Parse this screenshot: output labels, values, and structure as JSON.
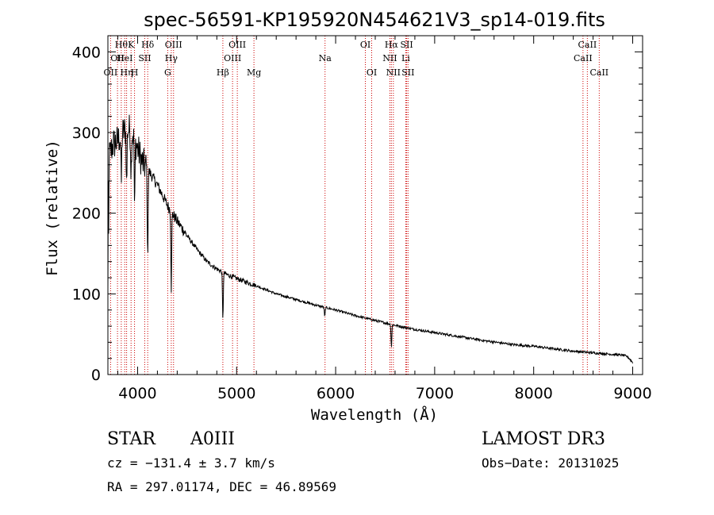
{
  "chart_data": {
    "type": "line",
    "title": "spec-56591-KP195920N454621V3_sp14-019.fits",
    "xlabel": "Wavelength (Å)",
    "ylabel": "Flux (relative)",
    "xlim": [
      3700,
      9100
    ],
    "ylim": [
      0,
      420
    ],
    "xticks": [
      4000,
      5000,
      6000,
      7000,
      8000,
      9000
    ],
    "yticks": [
      0,
      100,
      200,
      300,
      400
    ],
    "spectrum_anchors": {
      "x": [
        3700,
        3750,
        3800,
        3850,
        3900,
        3950,
        4000,
        4050,
        4100,
        4200,
        4300,
        4400,
        4500,
        4600,
        4700,
        4800,
        4900,
        5000,
        5200,
        5400,
        5600,
        5800,
        6000,
        6200,
        6400,
        6600,
        6800,
        7000,
        7200,
        7500,
        7800,
        8000,
        8200,
        8400,
        8600,
        8800,
        8900,
        8950,
        9000
      ],
      "y": [
        265,
        285,
        290,
        300,
        305,
        300,
        280,
        262,
        255,
        235,
        210,
        190,
        172,
        155,
        140,
        131,
        124,
        119,
        110,
        100,
        93,
        86,
        80,
        73,
        67,
        61,
        56,
        52,
        48,
        42,
        37,
        35,
        32,
        29,
        27,
        25,
        24,
        22,
        15
      ]
    },
    "absorption_lines": [
      {
        "x": 3835,
        "depth": 60
      },
      {
        "x": 3889,
        "depth": 70
      },
      {
        "x": 3934,
        "depth": 50
      },
      {
        "x": 3970,
        "depth": 90
      },
      {
        "x": 4102,
        "depth": 110
      },
      {
        "x": 4340,
        "depth": 95
      },
      {
        "x": 4861,
        "depth": 60
      },
      {
        "x": 5890,
        "depth": 12
      },
      {
        "x": 6563,
        "depth": 28
      }
    ],
    "spectral_lines": [
      {
        "x": 3727,
        "name": "OII",
        "row": 2
      },
      {
        "x": 3797,
        "name": "OII",
        "row": 1
      },
      {
        "x": 3835,
        "name": "Hθ",
        "row": 0
      },
      {
        "x": 3870,
        "name": "HeI",
        "row": 1
      },
      {
        "x": 3889,
        "name": "Hη",
        "row": 2
      },
      {
        "x": 3934,
        "name": "K",
        "row": 0
      },
      {
        "x": 3969,
        "name": "H",
        "row": 2
      },
      {
        "x": 4072,
        "name": "SII",
        "row": 1
      },
      {
        "x": 4102,
        "name": "Hδ",
        "row": 0
      },
      {
        "x": 4304,
        "name": "G",
        "row": 2
      },
      {
        "x": 4340,
        "name": "Hγ",
        "row": 1
      },
      {
        "x": 4363,
        "name": "OIII",
        "row": 0
      },
      {
        "x": 4861,
        "name": "Hβ",
        "row": 2
      },
      {
        "x": 4959,
        "name": "OIII",
        "row": 1
      },
      {
        "x": 5007,
        "name": "OIII",
        "row": 0
      },
      {
        "x": 5175,
        "name": "Mg",
        "row": 2
      },
      {
        "x": 5893,
        "name": "Na",
        "row": 1
      },
      {
        "x": 6300,
        "name": "OI",
        "row": 0
      },
      {
        "x": 6364,
        "name": "OI",
        "row": 2
      },
      {
        "x": 6548,
        "name": "NII",
        "row": 1
      },
      {
        "x": 6563,
        "name": "Hα",
        "row": 0
      },
      {
        "x": 6583,
        "name": "NII",
        "row": 2
      },
      {
        "x": 6708,
        "name": "Li",
        "row": 1
      },
      {
        "x": 6717,
        "name": "SII",
        "row": 0
      },
      {
        "x": 6731,
        "name": "SII",
        "row": 2
      },
      {
        "x": 8498,
        "name": "CaII",
        "row": 1
      },
      {
        "x": 8542,
        "name": "CaII",
        "row": 0
      },
      {
        "x": 8662,
        "name": "CaII",
        "row": 2
      }
    ]
  },
  "info": {
    "class": "STAR",
    "subclass": "A0III",
    "survey": "LAMOST DR3",
    "cz": "cz = −131.4 ± 3.7 km/s",
    "obs_date": "Obs−Date: 20131025",
    "coords": "RA = 297.01174, DEC =  46.89569"
  },
  "colors": {
    "ink": "#000000",
    "line_marker": "#cc0000",
    "background": "#ffffff"
  }
}
